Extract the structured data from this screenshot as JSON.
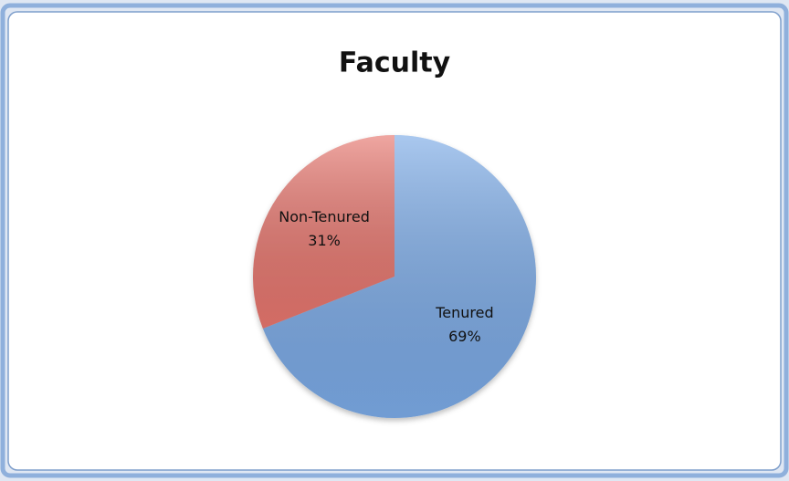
{
  "chart_data": {
    "type": "pie",
    "title": "Faculty",
    "categories": [
      "Tenured",
      "Non-Tenured"
    ],
    "values": [
      69,
      31
    ],
    "value_labels": [
      "69%",
      "31%"
    ],
    "colors": [
      "#7baae6",
      "#e6766e"
    ]
  }
}
